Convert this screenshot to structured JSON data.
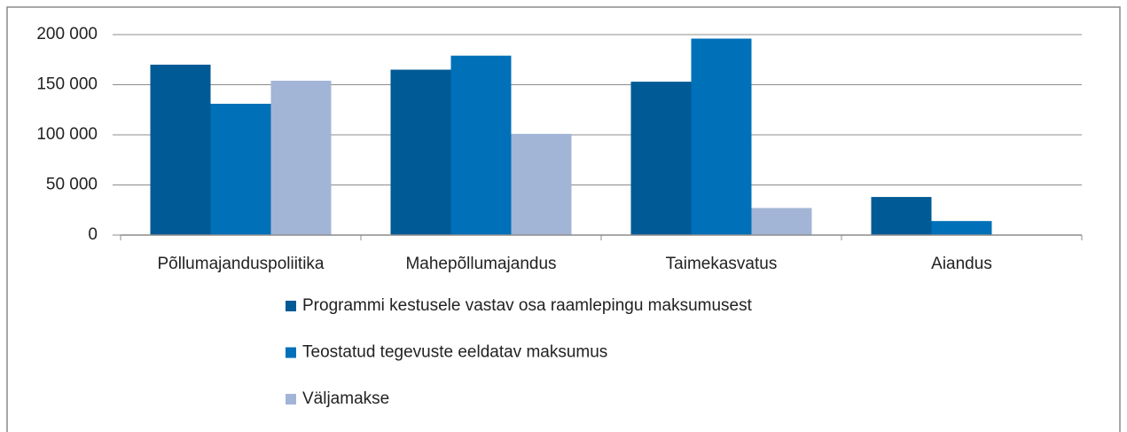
{
  "chart_data": {
    "type": "bar",
    "categories": [
      "Põllumajanduspoliitika",
      "Mahepõllumajandus",
      "Taimekasvatus",
      "Aiandus"
    ],
    "series": [
      {
        "name": "Programmi kestusele vastav osa raamlepingu maksumusest",
        "color": "#005a96",
        "values": [
          170000,
          165000,
          153000,
          38000
        ]
      },
      {
        "name": "Teostatud tegevuste eeldatav maksumus",
        "color": "#0070b8",
        "values": [
          131000,
          179000,
          196000,
          14000
        ]
      },
      {
        "name": "Väljamakse",
        "color": "#a3b5d6",
        "values": [
          154000,
          101000,
          27000,
          0
        ]
      }
    ],
    "ylim": [
      0,
      200000
    ],
    "yticks": [
      0,
      {
        "value": 50000,
        "label": "50 000"
      },
      {
        "value": 100000,
        "label": "100 000"
      },
      {
        "value": 150000,
        "label": "150 000"
      },
      {
        "value": 200000,
        "label": "200 000"
      }
    ],
    "grid": true,
    "legend": "bottom"
  }
}
